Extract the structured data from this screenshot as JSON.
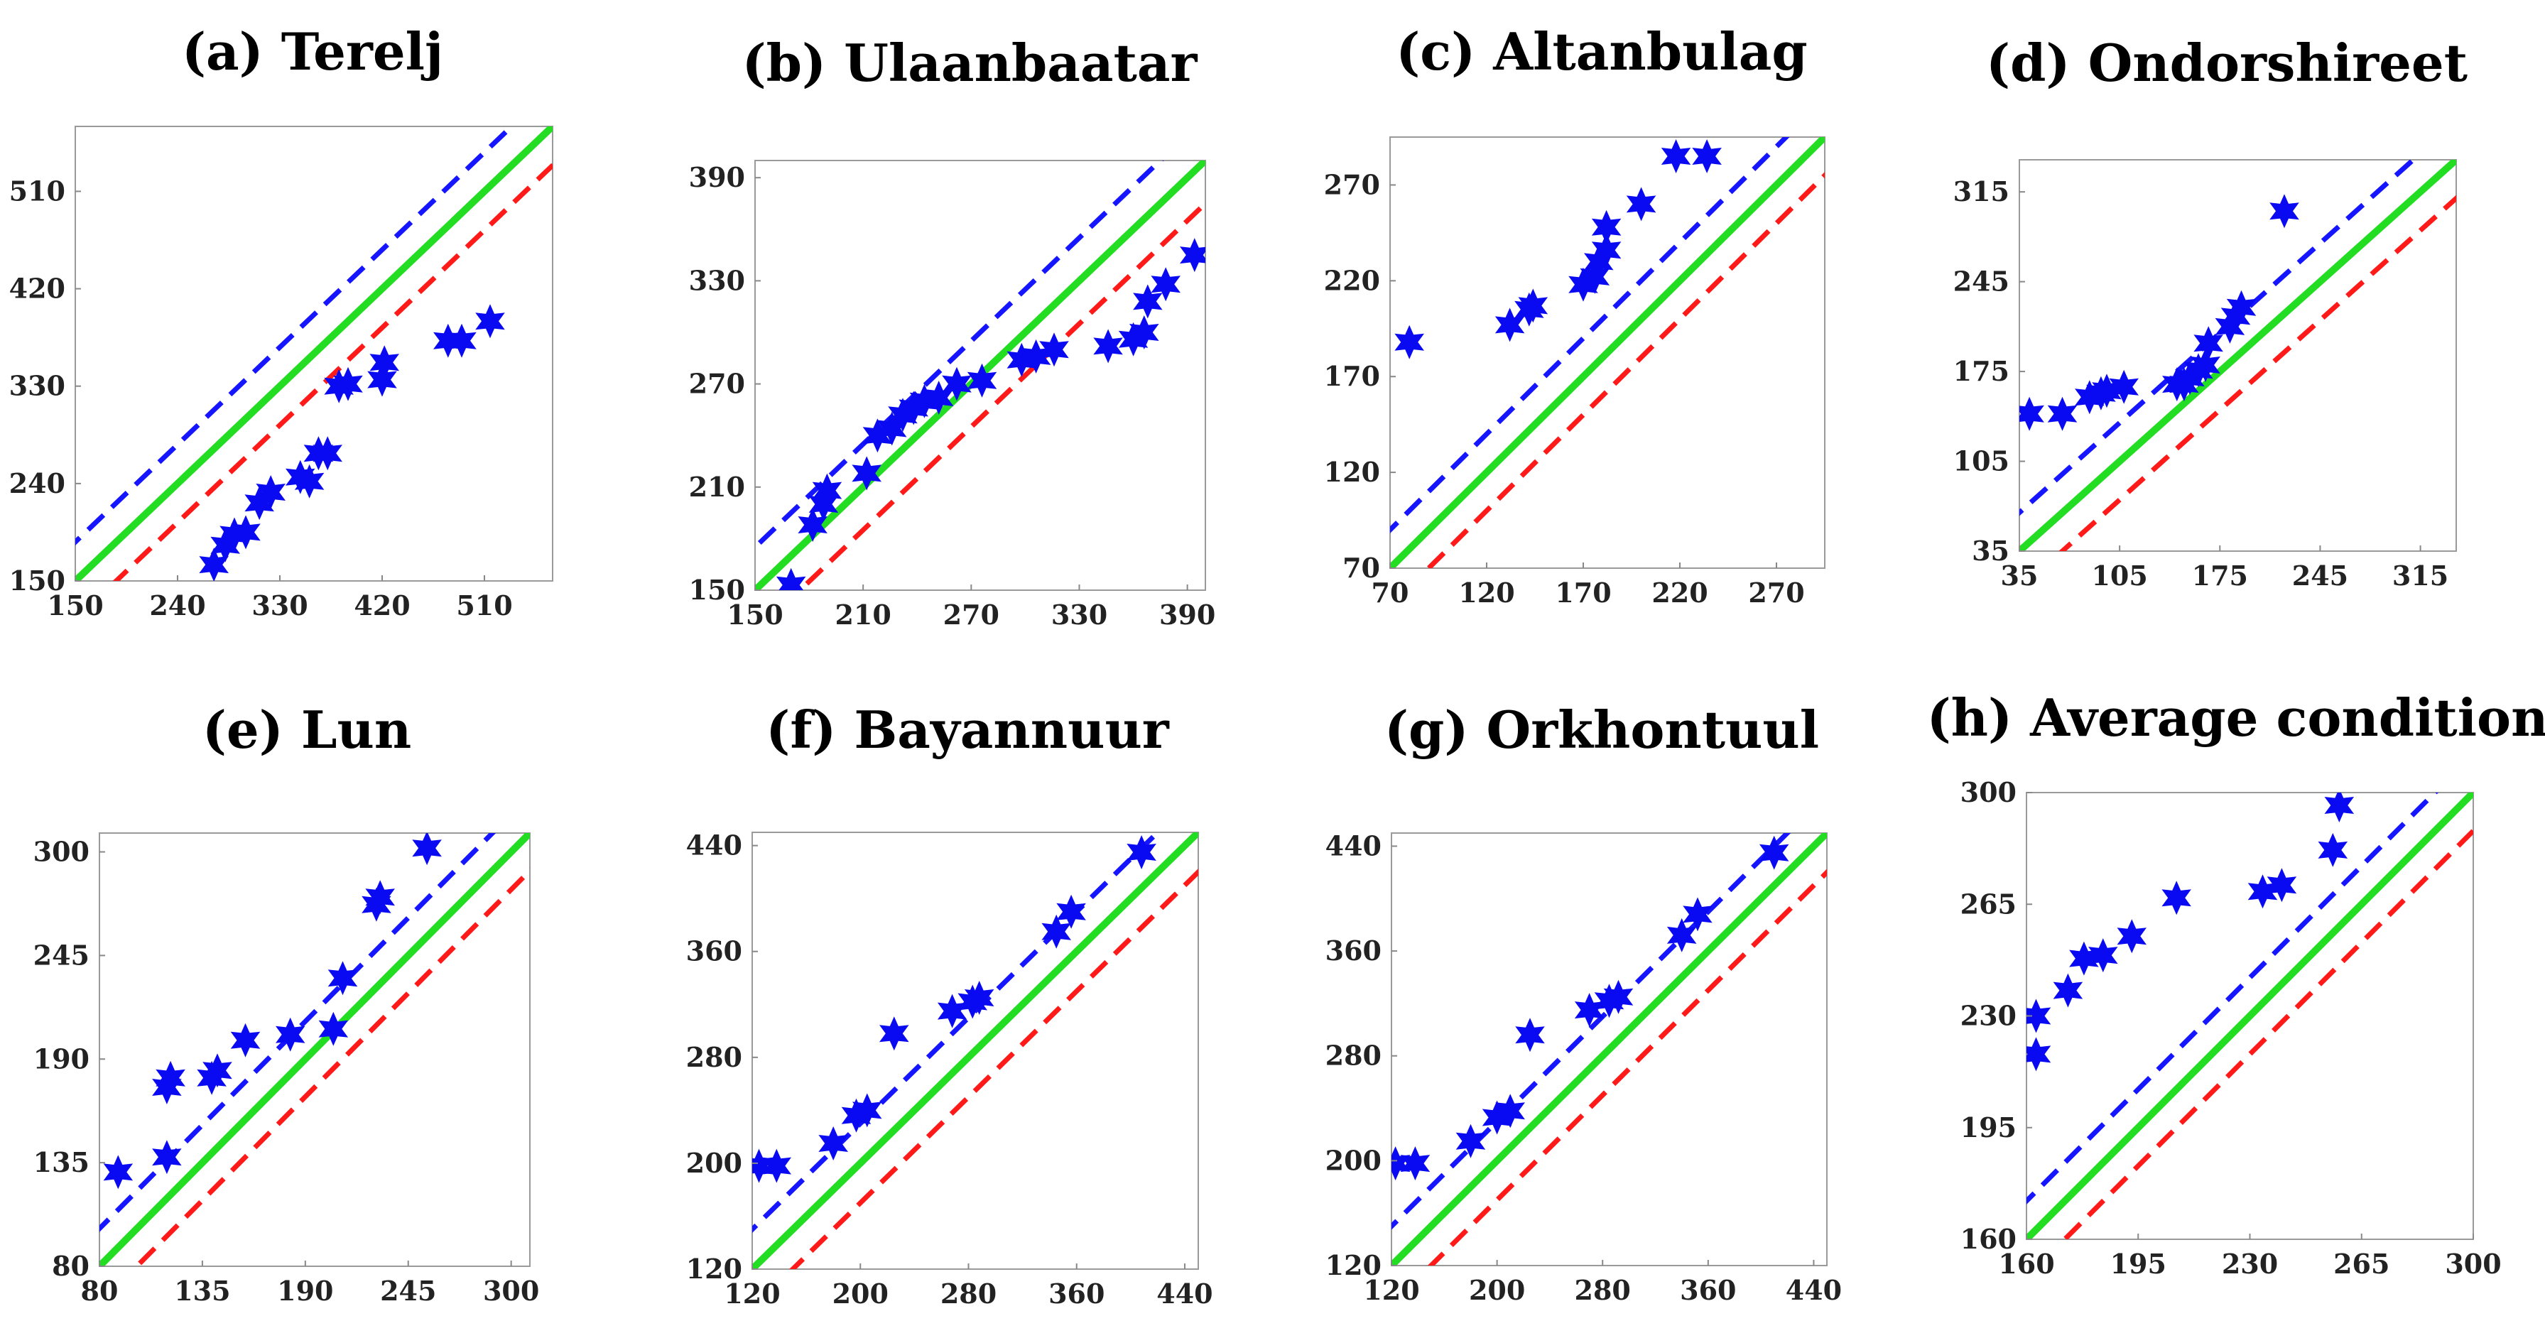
{
  "figure": {
    "background": "#ffffff"
  },
  "legend_styles": {
    "reference_line": {
      "color": "#22dd22",
      "style": "solid"
    },
    "upper_bound": {
      "color": "#1515ff",
      "style": "dashed"
    },
    "lower_bound": {
      "color": "#ff1a1a",
      "style": "dashed"
    },
    "marker": {
      "color": "#0a0af2",
      "shape": "six-pointed star"
    }
  },
  "chart_data": [
    {
      "type": "scatter",
      "title": "(a) Terelj",
      "xlim": [
        150,
        570
      ],
      "ylim": [
        150,
        570
      ],
      "xticks": [
        150,
        240,
        330,
        420,
        510
      ],
      "yticks": [
        150,
        240,
        330,
        420,
        510
      ],
      "band": 36,
      "points": [
        [
          272,
          165
        ],
        [
          282,
          183
        ],
        [
          290,
          193
        ],
        [
          300,
          195
        ],
        [
          312,
          222
        ],
        [
          322,
          232
        ],
        [
          348,
          246
        ],
        [
          356,
          242
        ],
        [
          364,
          268
        ],
        [
          372,
          268
        ],
        [
          382,
          330
        ],
        [
          390,
          332
        ],
        [
          420,
          336
        ],
        [
          422,
          352
        ],
        [
          478,
          372
        ],
        [
          490,
          372
        ],
        [
          515,
          390
        ]
      ]
    },
    {
      "type": "scatter",
      "title": "(b) Ulaanbaatar",
      "xlim": [
        150,
        400
      ],
      "ylim": [
        150,
        400
      ],
      "xticks": [
        150,
        210,
        270,
        330,
        390
      ],
      "yticks": [
        150,
        210,
        270,
        330,
        390
      ],
      "band": 25,
      "points": [
        [
          170,
          153
        ],
        [
          182,
          188
        ],
        [
          188,
          200
        ],
        [
          190,
          208
        ],
        [
          212,
          218
        ],
        [
          218,
          240
        ],
        [
          226,
          244
        ],
        [
          232,
          252
        ],
        [
          238,
          256
        ],
        [
          244,
          260
        ],
        [
          252,
          262
        ],
        [
          262,
          270
        ],
        [
          276,
          272
        ],
        [
          298,
          284
        ],
        [
          306,
          286
        ],
        [
          316,
          290
        ],
        [
          346,
          292
        ],
        [
          360,
          296
        ],
        [
          366,
          300
        ],
        [
          368,
          318
        ],
        [
          378,
          328
        ],
        [
          394,
          345
        ]
      ]
    },
    {
      "type": "scatter",
      "title": "(c) Altanbulag",
      "xlim": [
        70,
        295
      ],
      "ylim": [
        70,
        295
      ],
      "xticks": [
        70,
        120,
        170,
        220,
        270
      ],
      "yticks": [
        70,
        120,
        170,
        220,
        270
      ],
      "band": 20,
      "points": [
        [
          80,
          188
        ],
        [
          132,
          197
        ],
        [
          142,
          205
        ],
        [
          144,
          207
        ],
        [
          170,
          218
        ],
        [
          176,
          222
        ],
        [
          178,
          230
        ],
        [
          182,
          236
        ],
        [
          182,
          248
        ],
        [
          200,
          260
        ],
        [
          218,
          285
        ],
        [
          234,
          285
        ]
      ]
    },
    {
      "type": "scatter",
      "title": "(d) Ondorshireet",
      "xlim": [
        35,
        340
      ],
      "ylim": [
        35,
        340
      ],
      "xticks": [
        35,
        105,
        175,
        245,
        315
      ],
      "yticks": [
        35,
        105,
        175,
        245,
        315
      ],
      "band": 30,
      "points": [
        [
          42,
          142
        ],
        [
          65,
          142
        ],
        [
          84,
          155
        ],
        [
          92,
          158
        ],
        [
          96,
          160
        ],
        [
          108,
          163
        ],
        [
          145,
          165
        ],
        [
          150,
          165
        ],
        [
          154,
          170
        ],
        [
          160,
          176
        ],
        [
          165,
          180
        ],
        [
          167,
          197
        ],
        [
          182,
          210
        ],
        [
          186,
          218
        ],
        [
          190,
          225
        ],
        [
          220,
          300
        ]
      ]
    },
    {
      "type": "scatter",
      "title": "(e) Lun",
      "xlim": [
        80,
        310
      ],
      "ylim": [
        80,
        310
      ],
      "xticks": [
        80,
        135,
        190,
        245,
        300
      ],
      "yticks": [
        80,
        135,
        190,
        245,
        300
      ],
      "band": 20,
      "points": [
        [
          90,
          130
        ],
        [
          116,
          138
        ],
        [
          116,
          175
        ],
        [
          118,
          180
        ],
        [
          140,
          180
        ],
        [
          143,
          184
        ],
        [
          158,
          200
        ],
        [
          182,
          203
        ],
        [
          205,
          206
        ],
        [
          210,
          233
        ],
        [
          228,
          272
        ],
        [
          230,
          276
        ],
        [
          255,
          302
        ]
      ]
    },
    {
      "type": "scatter",
      "title": "(f) Bayannuur",
      "xlim": [
        120,
        450
      ],
      "ylim": [
        120,
        450
      ],
      "xticks": [
        120,
        200,
        280,
        360,
        440
      ],
      "yticks": [
        120,
        200,
        280,
        360,
        440
      ],
      "band": 30,
      "points": [
        [
          125,
          198
        ],
        [
          138,
          198
        ],
        [
          180,
          215
        ],
        [
          197,
          236
        ],
        [
          205,
          240
        ],
        [
          225,
          298
        ],
        [
          268,
          315
        ],
        [
          283,
          322
        ],
        [
          288,
          325
        ],
        [
          345,
          375
        ],
        [
          356,
          390
        ],
        [
          408,
          435
        ]
      ]
    },
    {
      "type": "scatter",
      "title": "(g) Orkhontuul",
      "xlim": [
        120,
        450
      ],
      "ylim": [
        120,
        450
      ],
      "xticks": [
        120,
        200,
        280,
        360,
        440
      ],
      "yticks": [
        120,
        200,
        280,
        360,
        440
      ],
      "band": 30,
      "points": [
        [
          123,
          198
        ],
        [
          138,
          198
        ],
        [
          180,
          215
        ],
        [
          200,
          233
        ],
        [
          210,
          238
        ],
        [
          225,
          296
        ],
        [
          270,
          315
        ],
        [
          285,
          322
        ],
        [
          292,
          325
        ],
        [
          340,
          372
        ],
        [
          352,
          388
        ],
        [
          410,
          435
        ]
      ]
    },
    {
      "type": "scatter",
      "title": "(h) Average condition",
      "xlim": [
        160,
        300
      ],
      "ylim": [
        160,
        300
      ],
      "xticks": [
        160,
        195,
        230,
        265,
        300
      ],
      "yticks": [
        160,
        195,
        230,
        265,
        300
      ],
      "band": 12,
      "points": [
        [
          163,
          218
        ],
        [
          163,
          230
        ],
        [
          173,
          238
        ],
        [
          178,
          248
        ],
        [
          184,
          249
        ],
        [
          193,
          255
        ],
        [
          207,
          267
        ],
        [
          234,
          269
        ],
        [
          240,
          271
        ],
        [
          256,
          282
        ],
        [
          258,
          296
        ]
      ]
    }
  ]
}
